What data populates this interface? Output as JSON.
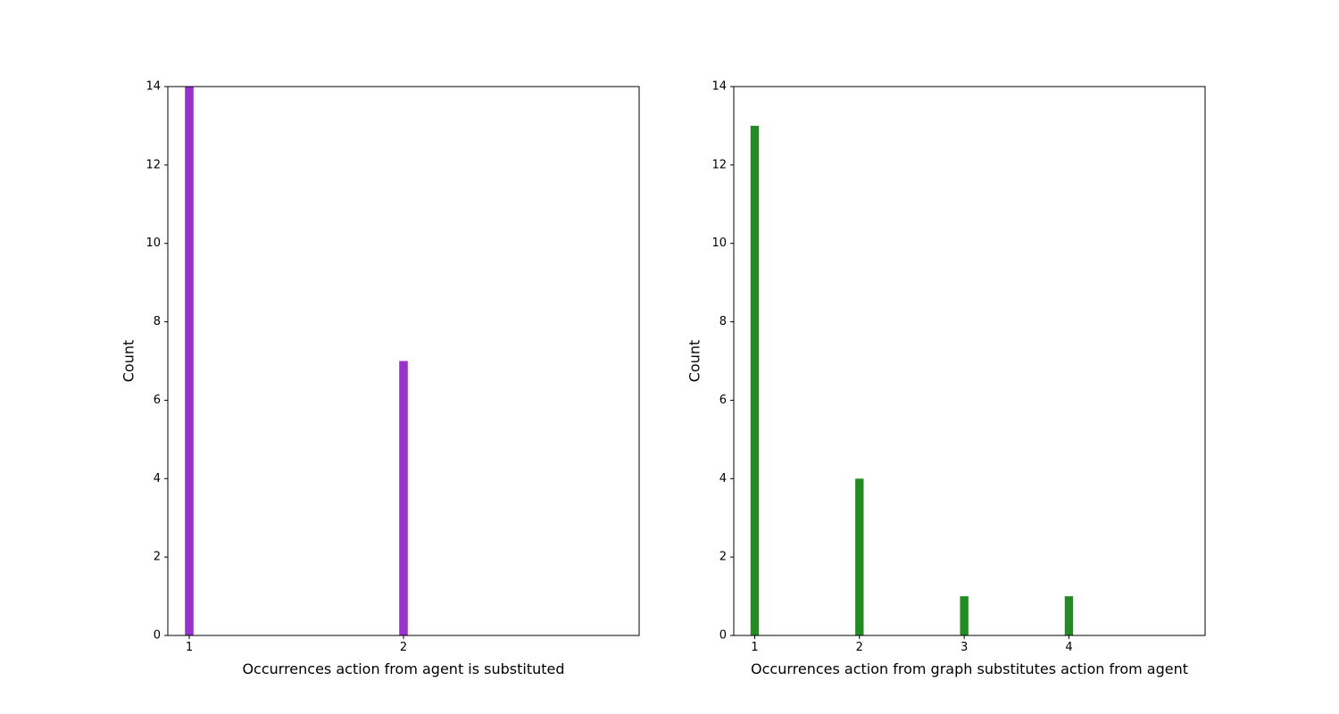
{
  "chart_data": [
    {
      "type": "bar",
      "title": "",
      "xlabel": "Occurrences action from agent is substituted",
      "ylabel": "Count",
      "x": [
        1,
        2
      ],
      "values": [
        14,
        7
      ],
      "xticks": [
        "1",
        "2"
      ],
      "yticks": [
        "0",
        "2",
        "4",
        "6",
        "8",
        "10",
        "12",
        "14"
      ],
      "xlim": [
        0.9,
        3.1
      ],
      "ylim": [
        0,
        14
      ],
      "bar_width": 0.04,
      "color": "#9932cc",
      "grid": false,
      "legend": "none"
    },
    {
      "type": "bar",
      "title": "",
      "xlabel": "Occurrences action from graph substitutes action from agent",
      "ylabel": "Count",
      "x": [
        1,
        2,
        3,
        4
      ],
      "values": [
        13,
        4,
        1,
        1
      ],
      "xticks": [
        "1",
        "2",
        "3",
        "4"
      ],
      "yticks": [
        "0",
        "2",
        "4",
        "6",
        "8",
        "10",
        "12",
        "14"
      ],
      "xlim": [
        0.8,
        5.3
      ],
      "ylim": [
        0,
        14
      ],
      "bar_width": 0.08,
      "color": "#228b22",
      "grid": false,
      "legend": "none"
    }
  ]
}
